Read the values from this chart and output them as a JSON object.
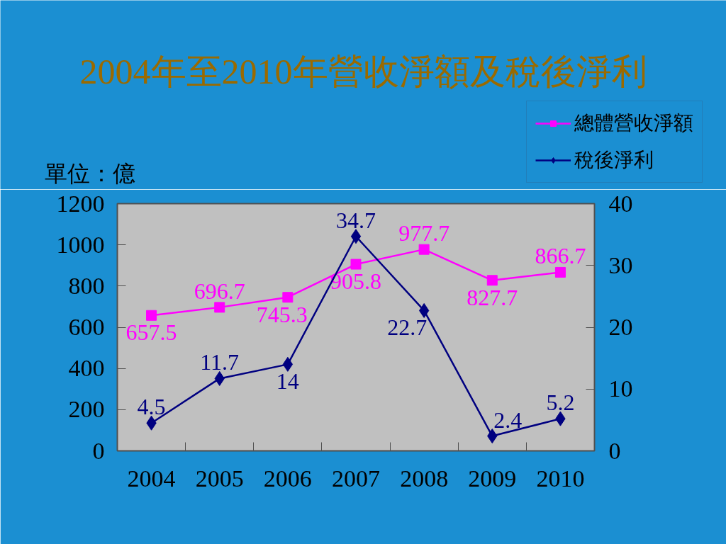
{
  "chart_data": {
    "type": "line",
    "title": "2004年至2010年營收淨額及稅後淨利",
    "annotations": [
      "單位：億"
    ],
    "categories": [
      "2004",
      "2005",
      "2006",
      "2007",
      "2008",
      "2009",
      "2010"
    ],
    "series": [
      {
        "name": "總體營收淨額",
        "color": "#ff00ff",
        "marker": "square",
        "values": [
          657.5,
          696.7,
          745.3,
          905.8,
          977.7,
          827.7,
          866.7
        ]
      },
      {
        "name": "稅後淨利",
        "color": "#000080",
        "marker": "diamond",
        "axis": "y2",
        "values": [
          4.5,
          11.7,
          14,
          34.7,
          22.7,
          2.4,
          5.2
        ]
      }
    ],
    "ylim": [
      0,
      1200
    ],
    "yticks": [
      0,
      200,
      400,
      600,
      800,
      1000,
      1200
    ],
    "y2lim": [
      0,
      40
    ],
    "y2ticks": [
      0,
      10,
      20,
      30,
      40
    ],
    "data_labels": true,
    "legend": "top right"
  }
}
